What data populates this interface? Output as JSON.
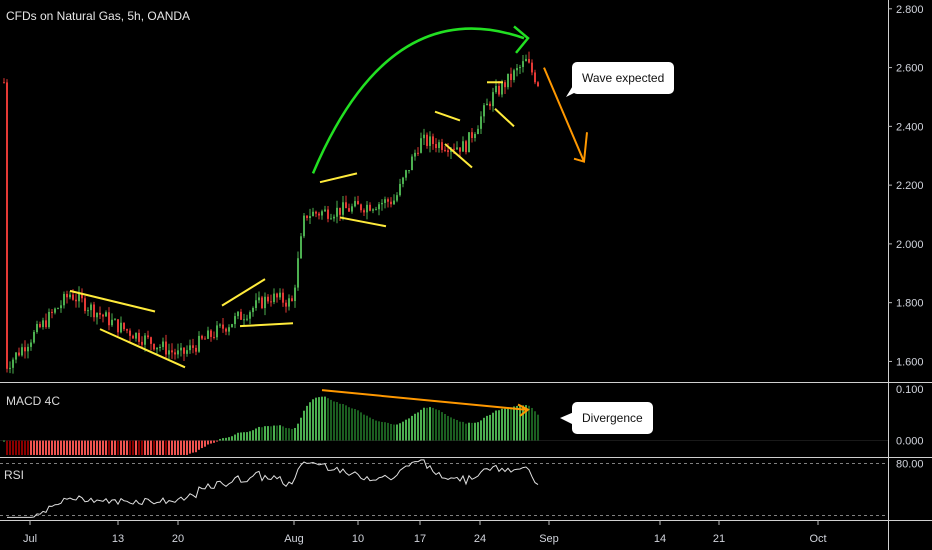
{
  "header": {
    "title": "CFDs on Natural Gas, 5h, OANDA"
  },
  "panes": {
    "macd_label": "MACD 4C",
    "rsi_label": "RSI"
  },
  "annotations": {
    "wave_callout": "Wave expected",
    "divergence_callout": "Divergence"
  },
  "colors": {
    "background": "#000000",
    "up": "#26a69a",
    "bull_candle": "#4caf50",
    "bear_candle": "#e53935",
    "pattern_lines": "#ffeb3b",
    "arc": "#22e022",
    "target_arrow": "#ff9800",
    "rsi": "#e0e0e0"
  },
  "chart_data": [
    {
      "type": "candlestick",
      "title": "CFDs on Natural Gas, 5h, OANDA",
      "x_ticks": [
        "Jul",
        "13",
        "20",
        "Aug",
        "10",
        "17",
        "24",
        "Sep",
        "14",
        "21",
        "Oct"
      ],
      "y_ticks": [
        "1.600",
        "1.800",
        "2.000",
        "2.200",
        "2.400",
        "2.600",
        "2.800"
      ],
      "ylim": [
        1.53,
        2.83
      ],
      "price_path": [
        {
          "x": "Jul",
          "y": 1.58
        },
        {
          "x": "Jul 8",
          "y": 1.83
        },
        {
          "x": "Jul 13",
          "y": 1.72
        },
        {
          "x": "Jul 20",
          "y": 1.62
        },
        {
          "x": "Jul 26",
          "y": 1.82
        },
        {
          "x": "Aug",
          "y": 1.8
        },
        {
          "x": "Aug 2",
          "y": 2.1
        },
        {
          "x": "Aug 10",
          "y": 2.12
        },
        {
          "x": "Aug 14",
          "y": 2.15
        },
        {
          "x": "Aug 17",
          "y": 2.35
        },
        {
          "x": "Aug 21",
          "y": 2.33
        },
        {
          "x": "Aug 24",
          "y": 2.5
        },
        {
          "x": "Aug 28",
          "y": 2.62
        },
        {
          "x": "Aug 29",
          "y": 2.55
        }
      ]
    },
    {
      "type": "bar",
      "title": "MACD 4C",
      "y_ticks": [
        "0.000",
        "0.100"
      ],
      "ylim": [
        -0.03,
        0.11
      ]
    },
    {
      "type": "line",
      "title": "RSI",
      "y_ticks": [
        "80.00"
      ],
      "ylim": [
        15,
        85
      ]
    }
  ]
}
